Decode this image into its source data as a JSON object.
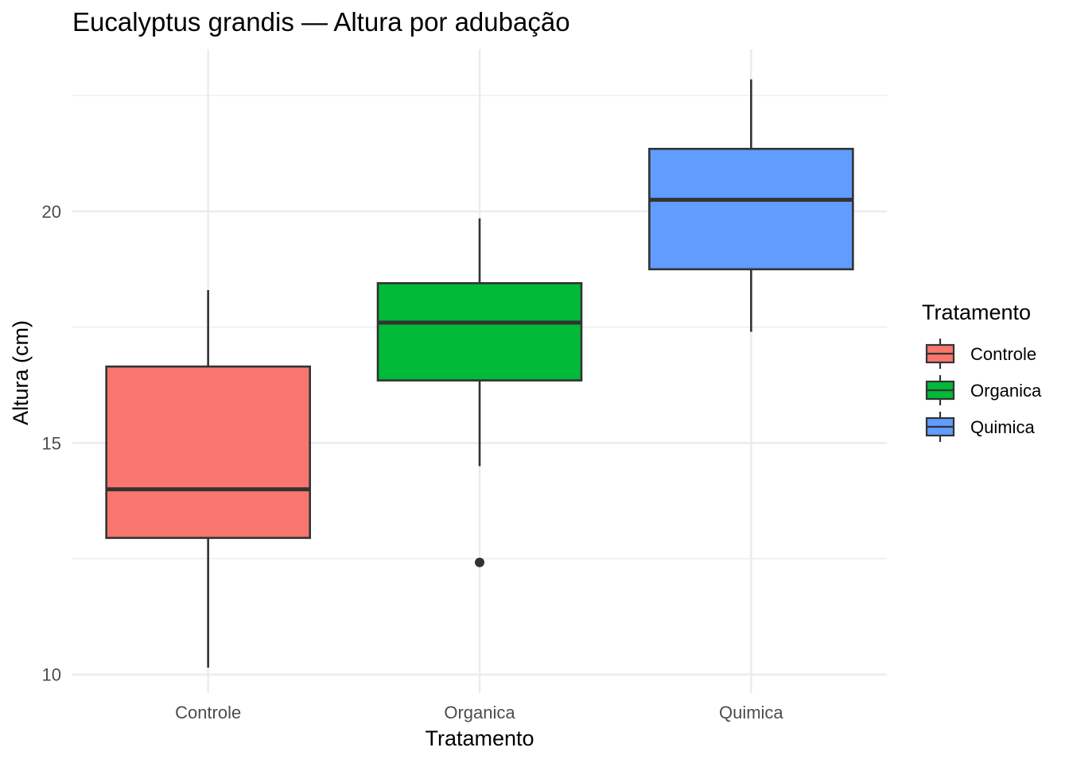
{
  "chart_data": {
    "type": "boxplot",
    "title": "Eucalyptus grandis — Altura por adubação",
    "xlabel": "Tratamento",
    "ylabel": "Altura (cm)",
    "ylim": [
      9.6,
      23.5
    ],
    "yticks": [
      10,
      15,
      20
    ],
    "grid": true,
    "legend": {
      "title": "Tratamento",
      "position": "right"
    },
    "categories": [
      "Controle",
      "Organica",
      "Quimica"
    ],
    "series": [
      {
        "name": "Controle",
        "color": "#F8766D",
        "whisker_low": 10.15,
        "q1": 12.95,
        "median": 14.0,
        "q3": 16.65,
        "whisker_high": 18.3,
        "outliers": []
      },
      {
        "name": "Organica",
        "color": "#00BA38",
        "whisker_low": 14.5,
        "q1": 16.35,
        "median": 17.6,
        "q3": 18.45,
        "whisker_high": 19.85,
        "outliers": [
          12.42
        ]
      },
      {
        "name": "Quimica",
        "color": "#619CFF",
        "whisker_low": 17.4,
        "q1": 18.75,
        "median": 20.25,
        "q3": 21.35,
        "whisker_high": 22.85,
        "outliers": []
      }
    ]
  }
}
